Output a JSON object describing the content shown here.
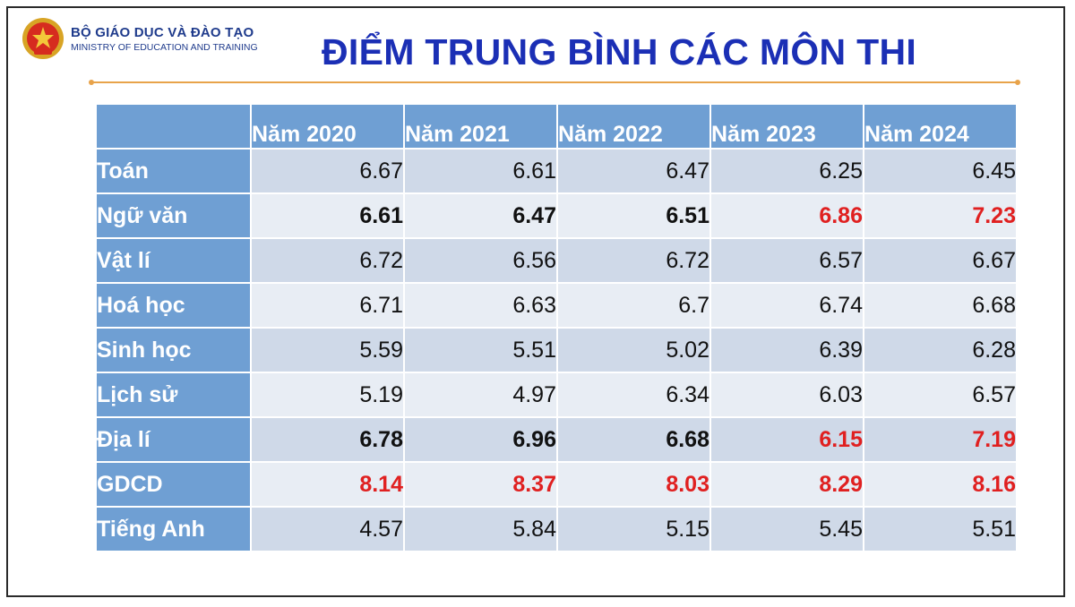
{
  "header": {
    "ministry_vn": "BỘ GIÁO DỤC VÀ ĐÀO TẠO",
    "ministry_en": "MINISTRY OF EDUCATION AND TRAINING",
    "title": "ĐIỂM TRUNG BÌNH CÁC MÔN THI",
    "accent_color": "#e8a34a",
    "title_color": "#1b2fb5"
  },
  "table": {
    "header_color": "#6f9fd3",
    "highlight_color": "#e02020",
    "years": [
      "Năm 2020",
      "Năm 2021",
      "Năm 2022",
      "Năm 2023",
      "Năm 2024"
    ],
    "rows": [
      {
        "subject": "Toán",
        "values": [
          "6.67",
          "6.61",
          "6.47",
          "6.25",
          "6.45"
        ],
        "styles": [
          "",
          "",
          "",
          "",
          ""
        ]
      },
      {
        "subject": "Ngữ văn",
        "values": [
          "6.61",
          "6.47",
          "6.51",
          "6.86",
          "7.23"
        ],
        "styles": [
          "bold",
          "bold",
          "bold",
          "red",
          "red"
        ]
      },
      {
        "subject": "Vật lí",
        "values": [
          "6.72",
          "6.56",
          "6.72",
          "6.57",
          "6.67"
        ],
        "styles": [
          "",
          "",
          "",
          "",
          ""
        ]
      },
      {
        "subject": "Hoá học",
        "values": [
          "6.71",
          "6.63",
          "6.7",
          "6.74",
          "6.68"
        ],
        "styles": [
          "",
          "",
          "",
          "",
          ""
        ]
      },
      {
        "subject": "Sinh học",
        "values": [
          "5.59",
          "5.51",
          "5.02",
          "6.39",
          "6.28"
        ],
        "styles": [
          "",
          "",
          "",
          "",
          ""
        ]
      },
      {
        "subject": "Lịch sử",
        "values": [
          "5.19",
          "4.97",
          "6.34",
          "6.03",
          "6.57"
        ],
        "styles": [
          "",
          "",
          "",
          "",
          ""
        ]
      },
      {
        "subject": "Địa lí",
        "values": [
          "6.78",
          "6.96",
          "6.68",
          "6.15",
          "7.19"
        ],
        "styles": [
          "bold",
          "bold",
          "bold",
          "red",
          "red"
        ]
      },
      {
        "subject": "GDCD",
        "values": [
          "8.14",
          "8.37",
          "8.03",
          "8.29",
          "8.16"
        ],
        "styles": [
          "red",
          "red",
          "red",
          "red",
          "red"
        ]
      },
      {
        "subject": "Tiếng Anh",
        "values": [
          "4.57",
          "5.84",
          "5.15",
          "5.45",
          "5.51"
        ],
        "styles": [
          "",
          "",
          "",
          "",
          ""
        ]
      }
    ]
  }
}
